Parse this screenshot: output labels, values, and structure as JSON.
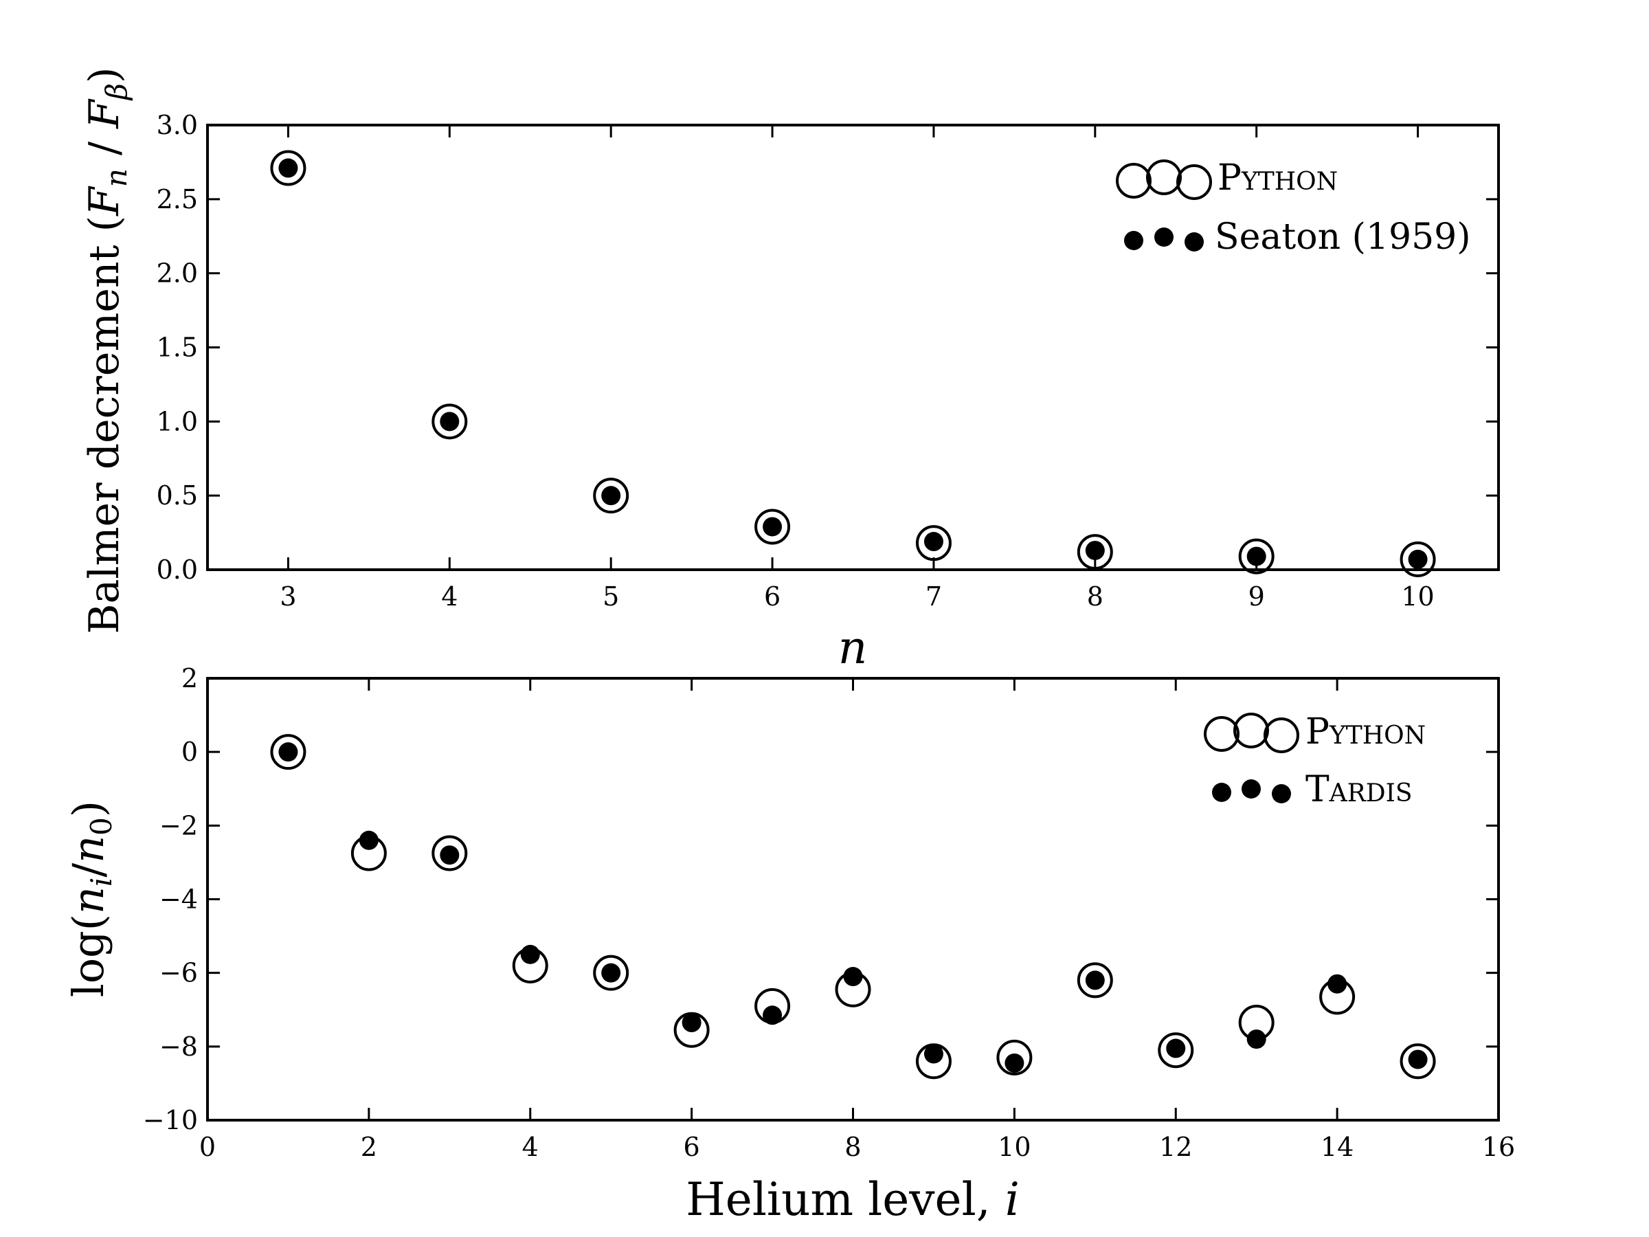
{
  "chart_data": [
    {
      "type": "scatter",
      "ylabel": "Balmer decrement (F_n / F_β)",
      "xlabel": "n",
      "xlim": [
        2.5,
        10.5
      ],
      "ylim": [
        0.0,
        3.0
      ],
      "xticks": [
        "3",
        "4",
        "5",
        "6",
        "7",
        "8",
        "9",
        "10"
      ],
      "yticks": [
        "0.0",
        "0.5",
        "1.0",
        "1.5",
        "2.0",
        "2.5",
        "3.0"
      ],
      "legend_position": "top-right",
      "series": [
        {
          "name": "Python",
          "marker": "open-circle",
          "x": [
            3,
            4,
            5,
            6,
            7,
            8,
            9,
            10
          ],
          "y": [
            2.71,
            1.0,
            0.5,
            0.29,
            0.18,
            0.12,
            0.09,
            0.07
          ]
        },
        {
          "name": "Seaton (1959)",
          "marker": "filled-circle",
          "x": [
            3,
            4,
            5,
            6,
            7,
            8,
            9,
            10
          ],
          "y": [
            2.71,
            1.0,
            0.5,
            0.29,
            0.19,
            0.13,
            0.09,
            0.07
          ]
        }
      ]
    },
    {
      "type": "scatter",
      "ylabel": "log(n_i/n_0)",
      "xlabel": "Helium level, i",
      "xlim": [
        0,
        16
      ],
      "ylim": [
        -10,
        2
      ],
      "xticks": [
        "0",
        "2",
        "4",
        "6",
        "8",
        "10",
        "12",
        "14",
        "16"
      ],
      "yticks": [
        "−10",
        "−8",
        "−6",
        "−4",
        "−2",
        "0",
        "2"
      ],
      "legend_position": "top-right",
      "series": [
        {
          "name": "Python",
          "marker": "open-circle",
          "x": [
            1,
            2,
            3,
            4,
            5,
            6,
            7,
            8,
            9,
            10,
            11,
            12,
            13,
            14,
            15
          ],
          "y": [
            0.0,
            -2.75,
            -2.75,
            -5.8,
            -6.0,
            -7.55,
            -6.9,
            -6.45,
            -8.4,
            -8.3,
            -6.2,
            -8.1,
            -7.35,
            -6.65,
            -8.4
          ]
        },
        {
          "name": "Tardis",
          "marker": "filled-circle",
          "x": [
            1,
            2,
            3,
            4,
            5,
            6,
            7,
            8,
            9,
            10,
            11,
            12,
            13,
            14,
            15
          ],
          "y": [
            0.0,
            -2.4,
            -2.8,
            -5.5,
            -6.0,
            -7.35,
            -7.15,
            -6.1,
            -8.2,
            -8.45,
            -6.2,
            -8.05,
            -7.8,
            -6.3,
            -8.35
          ]
        }
      ]
    }
  ]
}
